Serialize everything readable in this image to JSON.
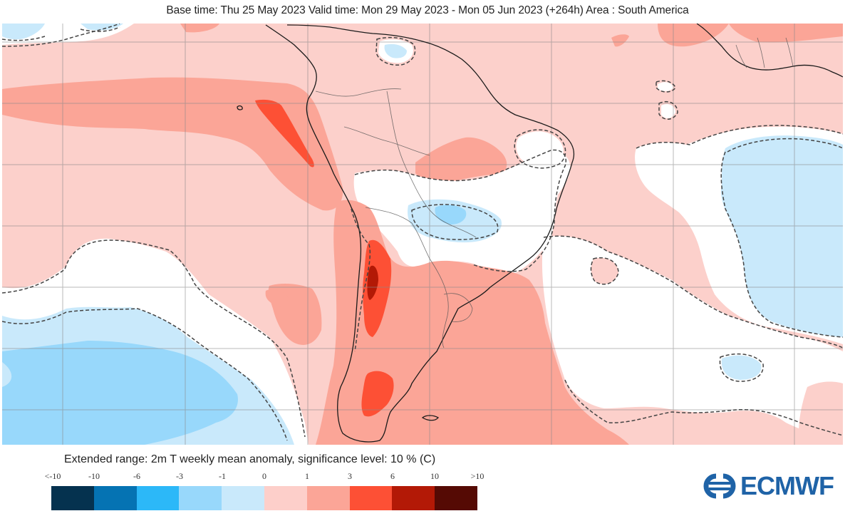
{
  "header": {
    "title": "Base time: Thu 25 May 2023 Valid time: Mon 29 May 2023 - Mon 05 Jun 2023 (+264h) Area : South America"
  },
  "map": {
    "area": "South America",
    "variable": "2m T weekly mean anomaly",
    "significance_contour": "dashed",
    "gridlines": true,
    "regions": [
      {
        "name": "equatorial-pacific-warm-band",
        "category": "1 to 3"
      },
      {
        "name": "peru-coast-strong-warm",
        "category": "3 to 6"
      },
      {
        "name": "andes-argentina-warm",
        "category": "3 to 6"
      },
      {
        "name": "andes-central-peak",
        "category": "6 to 10"
      },
      {
        "name": "patagonia-warm",
        "category": "3 to 6"
      },
      {
        "name": "southern-cone-warm",
        "category": "1 to 3"
      },
      {
        "name": "central-brazil-cool",
        "category": "-1 to -3"
      },
      {
        "name": "southeast-pacific-cool",
        "category": "-1 to -3"
      },
      {
        "name": "south-atlantic-east-cool",
        "category": "0 to -1"
      },
      {
        "name": "background",
        "category": "0 to 1"
      }
    ]
  },
  "legend": {
    "title": "Extended range: 2m T weekly mean anomaly, significance level: 10 % (C)",
    "ticks": [
      "<-10",
      "-10",
      "-6",
      "-3",
      "-1",
      "0",
      "1",
      "3",
      "6",
      "10",
      ">10"
    ],
    "colors": [
      "#05324f",
      "#0573b3",
      "#2cb8f8",
      "#98d8fb",
      "#c9e9fb",
      "#fdcfca",
      "#fba597",
      "#fd5035",
      "#b31906",
      "#550a04"
    ]
  },
  "logo": {
    "text": "ECMWF",
    "color": "#1f63a7"
  },
  "chart_data": {
    "type": "heatmap",
    "title": "Base time: Thu 25 May 2023 Valid time: Mon 29 May 2023 - Mon 05 Jun 2023 (+264h) Area : South America",
    "colorbar_label": "Extended range: 2m T weekly mean anomaly, significance level: 10 % (C)",
    "colorbar_bins": [
      "<-10",
      "-10 to -6",
      "-6 to -3",
      "-3 to -1",
      "-1 to 0",
      "0 to 1",
      "1 to 3",
      "3 to 6",
      "6 to 10",
      ">10"
    ],
    "units": "C",
    "grid": true,
    "legend_position": "bottom-left"
  }
}
